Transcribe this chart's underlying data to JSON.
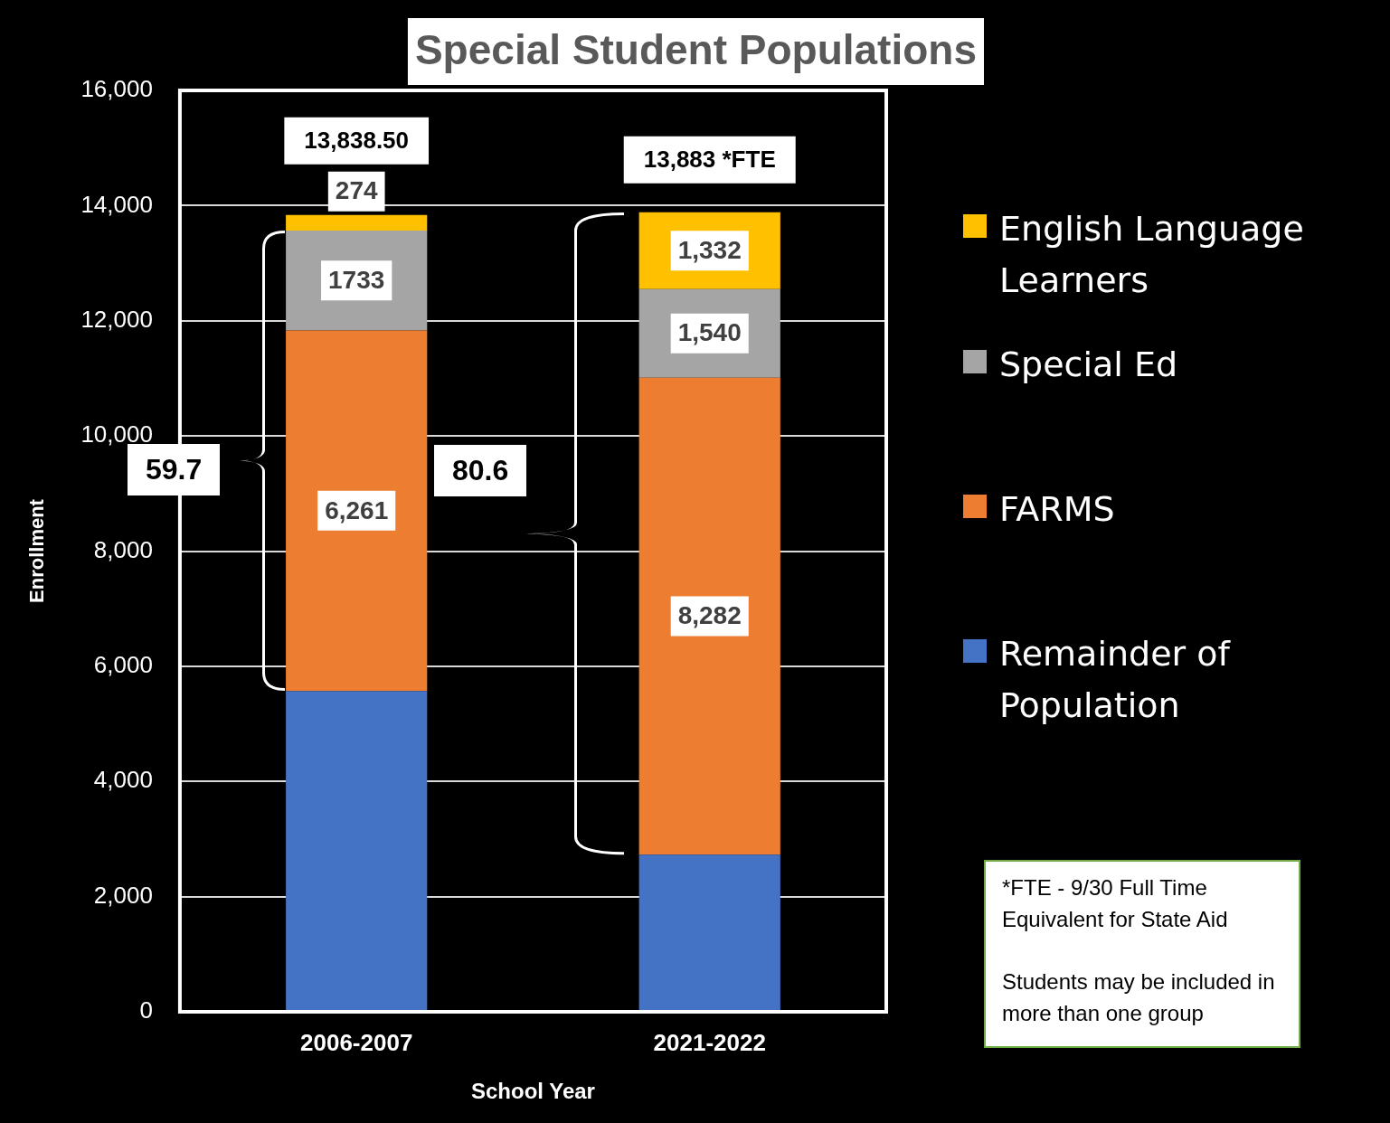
{
  "chart_data": {
    "type": "bar",
    "title": "Special Student Populations",
    "xlabel": "School Year",
    "ylabel": "Enrollment",
    "categories": [
      "2006-2007",
      "2021-2022"
    ],
    "stacked": true,
    "series": [
      {
        "name": "Remainder of Population",
        "color": "#4472c4",
        "values": [
          5570.5,
          2729
        ],
        "value_labels": [
          null,
          null
        ]
      },
      {
        "name": "FARMS",
        "color": "#ed7d31",
        "values": [
          6261,
          8282
        ],
        "value_labels": [
          "6,261",
          "8,282"
        ]
      },
      {
        "name": "Special Ed",
        "color": "#a5a5a5",
        "values": [
          1733,
          1540
        ],
        "value_labels": [
          "1733",
          "1,540"
        ]
      },
      {
        "name": "English Language Learners",
        "color": "#ffc000",
        "values": [
          274,
          1332
        ],
        "value_labels": [
          "274",
          "1,332"
        ]
      }
    ],
    "totals": [
      "13,838.50",
      "13,883 *FTE"
    ],
    "ylim": [
      0,
      16000
    ],
    "yticks": [
      0,
      {
        "value": 2000,
        "label": "2,000"
      },
      {
        "value": 4000,
        "label": "4,000"
      },
      {
        "value": 6000,
        "label": "6,000"
      },
      {
        "value": 8000,
        "label": "8,000"
      },
      {
        "value": 10000,
        "label": "10,000"
      },
      {
        "value": 12000,
        "label": "12,000"
      },
      {
        "value": 14000,
        "label": "14,000"
      },
      {
        "value": 16000,
        "label": "16,000"
      }
    ],
    "grid": "y",
    "legend": "right",
    "annotations": [
      "59.7",
      "80.6",
      "*FTE - 9/30 Full Time Equivalent for State Aid\n\nStudents may be included in more than one group"
    ]
  }
}
